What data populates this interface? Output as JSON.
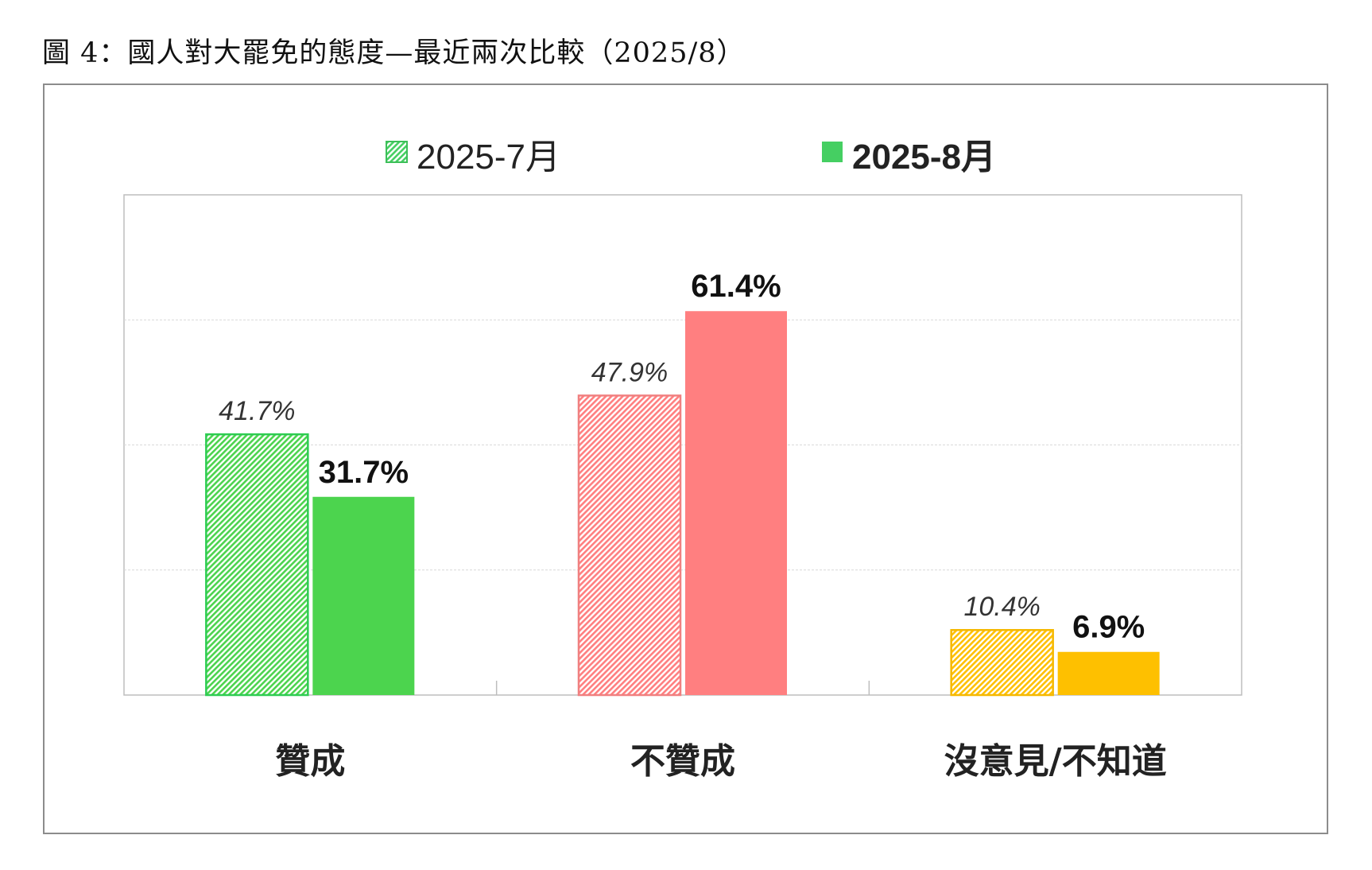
{
  "figure_title": "圖 4：國人對大罷免的態度—最近兩次比較（2025/8）",
  "chart_data": {
    "type": "bar",
    "title": "圖 4：國人對大罷免的態度—最近兩次比較（2025/8）",
    "categories": [
      "贊成",
      "不贊成",
      "沒意見/不知道"
    ],
    "series": [
      {
        "name": "2025-7月",
        "values": [
          41.7,
          47.9,
          10.4
        ],
        "labels": [
          "41.7%",
          "47.9%",
          "10.4%"
        ],
        "style": "hatched"
      },
      {
        "name": "2025-8月",
        "values": [
          31.7,
          61.4,
          6.9
        ],
        "labels": [
          "31.7%",
          "61.4%",
          "6.9%"
        ],
        "style": "solid"
      }
    ],
    "category_colors": {
      "solid": [
        "#4cd44e",
        "#ff7f80",
        "#fec000"
      ],
      "stroke": [
        "#2ecc52",
        "#f08080",
        "#f5b800"
      ]
    },
    "legend_colors": [
      "#45cf62",
      "#45cf62"
    ],
    "ylim": [
      0,
      80
    ],
    "grid": true,
    "legend_position": "top-center",
    "xlabel": "",
    "ylabel": ""
  }
}
